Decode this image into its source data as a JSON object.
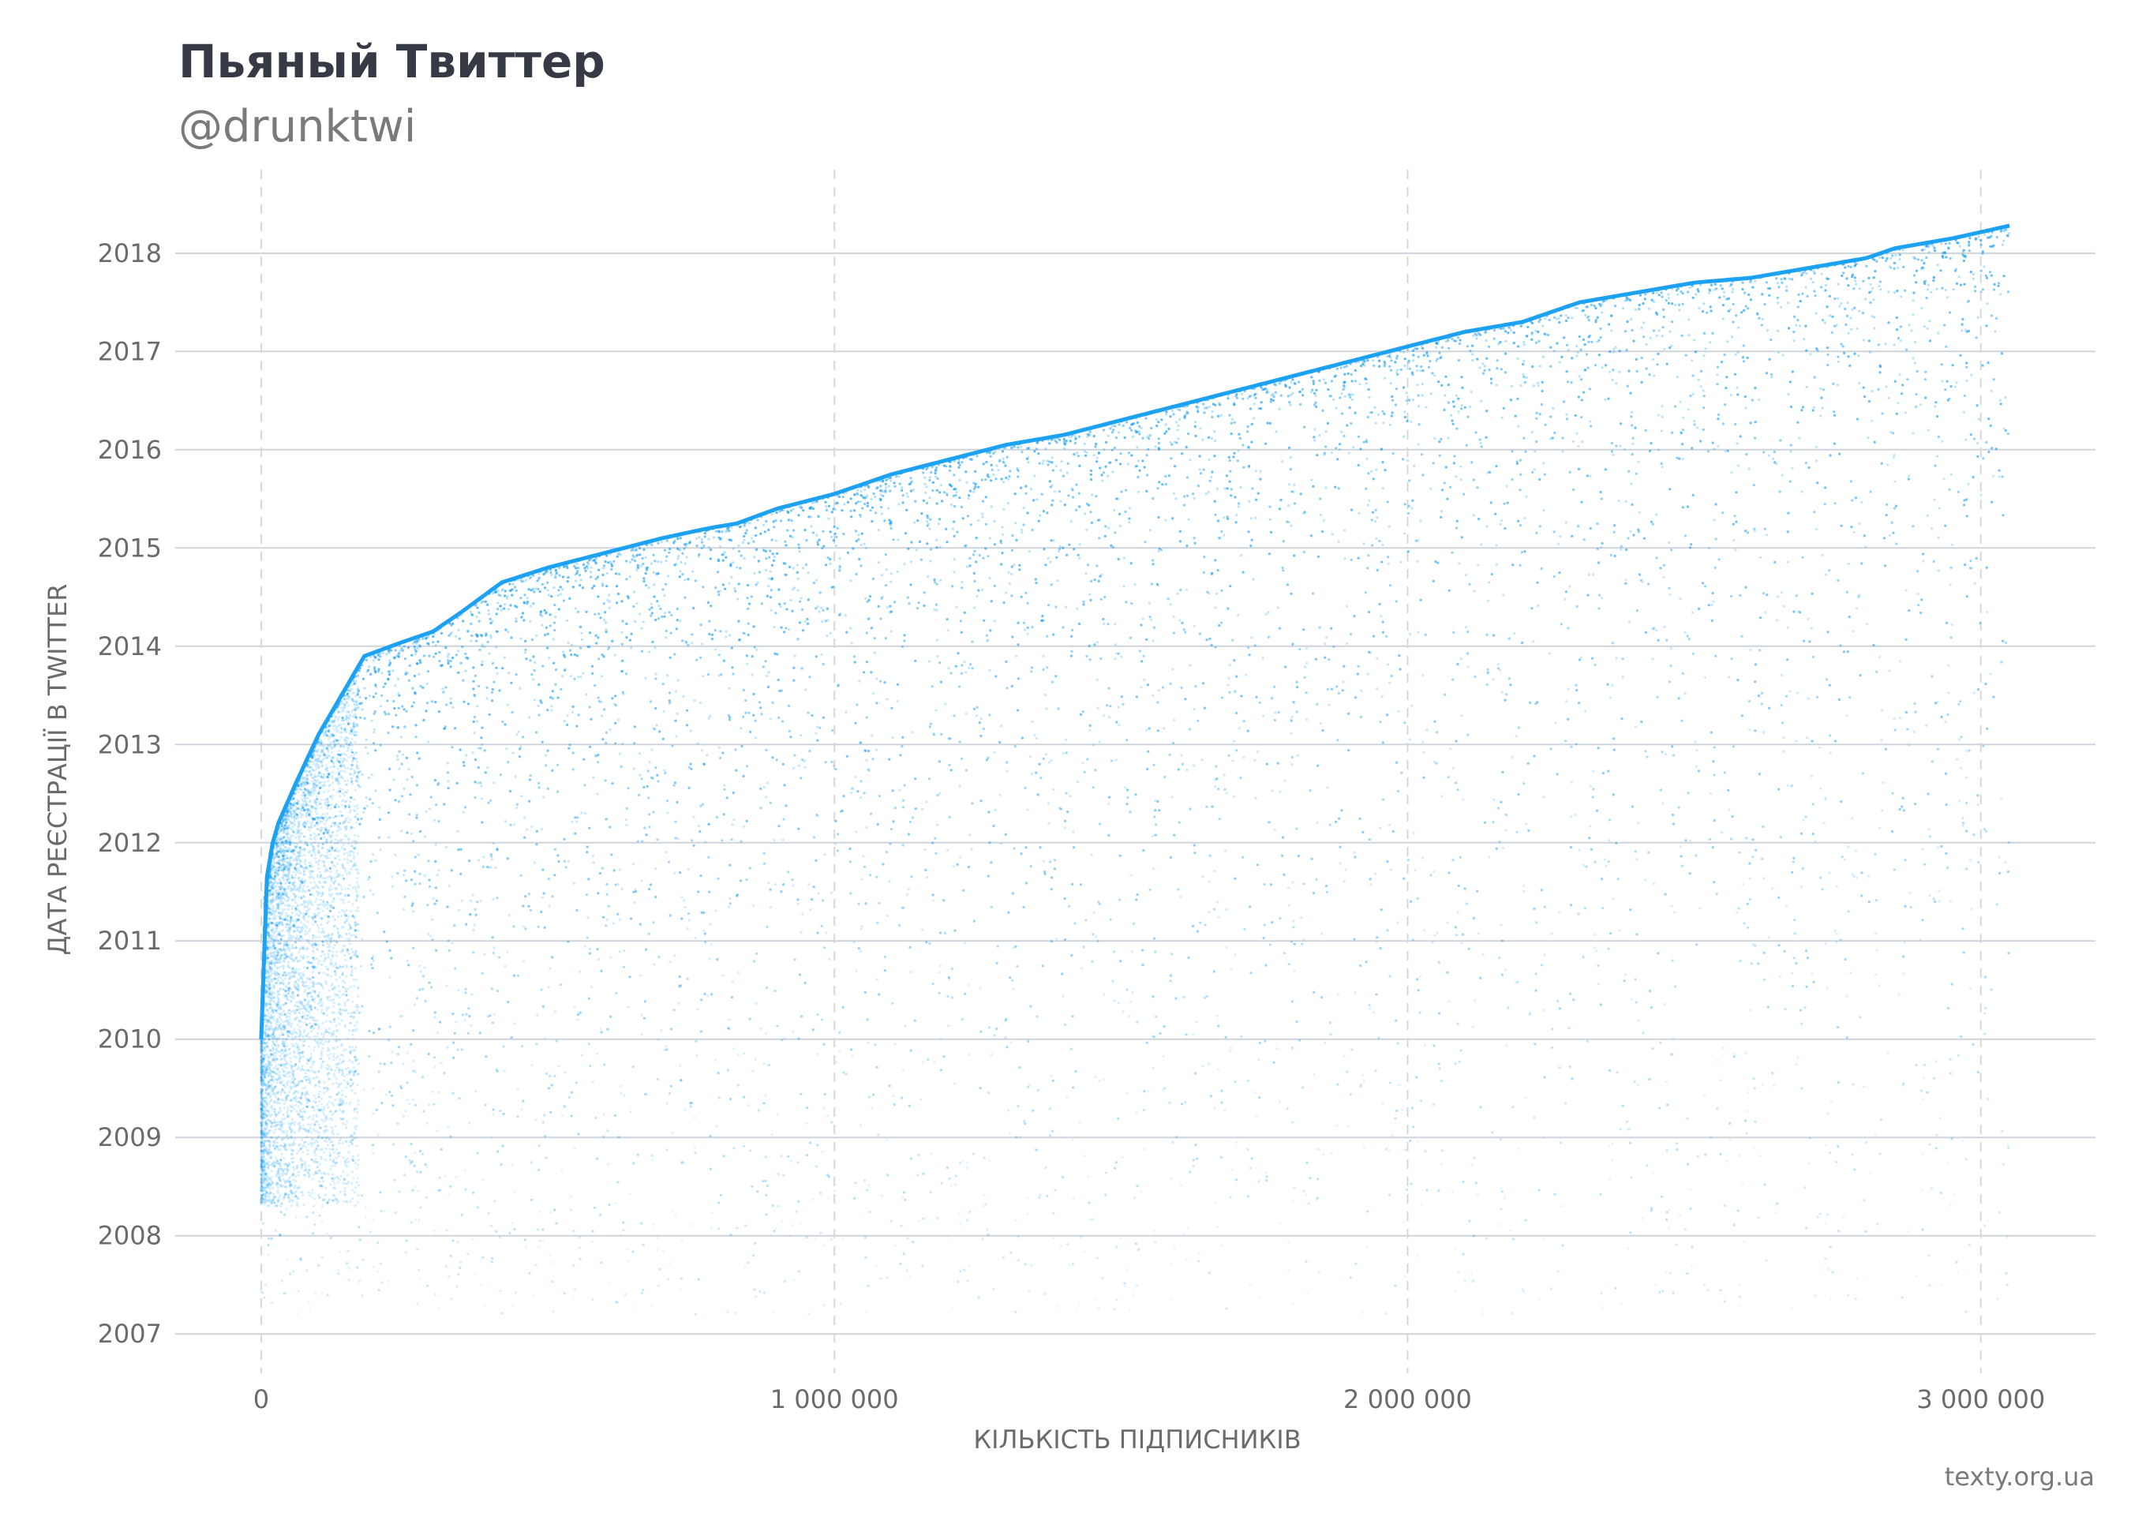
{
  "header": {
    "title": "Пьяный Твиттер",
    "subtitle": "@drunktwi"
  },
  "footer": {
    "source": "texty.org.ua"
  },
  "colors": {
    "points": "#1da1f2",
    "grid": "#cfd4da",
    "vgrid": "#d8d8d8",
    "text": "#6b6b6b"
  },
  "chart_data": {
    "type": "scatter",
    "xlabel": "КІЛЬКІСТЬ ПІДПИСНИКІВ",
    "ylabel": "ДАТА РЕЄСТРАЦІЇ В TWITTER",
    "xlim": [
      -150000,
      3200000
    ],
    "ylim": [
      2006.6,
      2018.85
    ],
    "x_ticks": [
      0,
      1000000,
      2000000,
      3000000
    ],
    "x_tick_labels": [
      "0",
      "1 000 000",
      "2 000 000",
      "3 000 000"
    ],
    "y_ticks": [
      2007,
      2008,
      2009,
      2010,
      2011,
      2012,
      2013,
      2014,
      2015,
      2016,
      2017,
      2018
    ],
    "y_tick_labels": [
      "2007",
      "2008",
      "2009",
      "2010",
      "2011",
      "2012",
      "2013",
      "2014",
      "2015",
      "2016",
      "2017",
      "2018"
    ],
    "x_grid": "dashed",
    "y_grid": "solid",
    "upper_frontier": {
      "x": [
        0,
        5000,
        15000,
        30000,
        60000,
        100000,
        150000,
        180000,
        250000,
        300000,
        350000,
        420000,
        500000,
        600000,
        700000,
        780000,
        830000,
        900000,
        1000000,
        1100000,
        1200000,
        1300000,
        1400000,
        1500000,
        1600000,
        1700000,
        1800000,
        1900000,
        2000000,
        2100000,
        2200000,
        2300000,
        2400000,
        2500000,
        2600000,
        2700000,
        2800000,
        2850000,
        2950000,
        3050000
      ],
      "y": [
        2010.0,
        2011.4,
        2011.9,
        2012.2,
        2012.6,
        2013.1,
        2013.6,
        2013.9,
        2014.05,
        2014.15,
        2014.35,
        2014.65,
        2014.8,
        2014.95,
        2015.1,
        2015.2,
        2015.25,
        2015.4,
        2015.55,
        2015.75,
        2015.9,
        2016.05,
        2016.15,
        2016.3,
        2016.45,
        2016.6,
        2016.75,
        2016.9,
        2017.05,
        2017.2,
        2017.3,
        2017.5,
        2017.6,
        2017.7,
        2017.75,
        2017.85,
        2017.95,
        2018.05,
        2018.15,
        2018.28
      ]
    },
    "points_max_x": 3050000,
    "points_min_y": 2007.2
  }
}
